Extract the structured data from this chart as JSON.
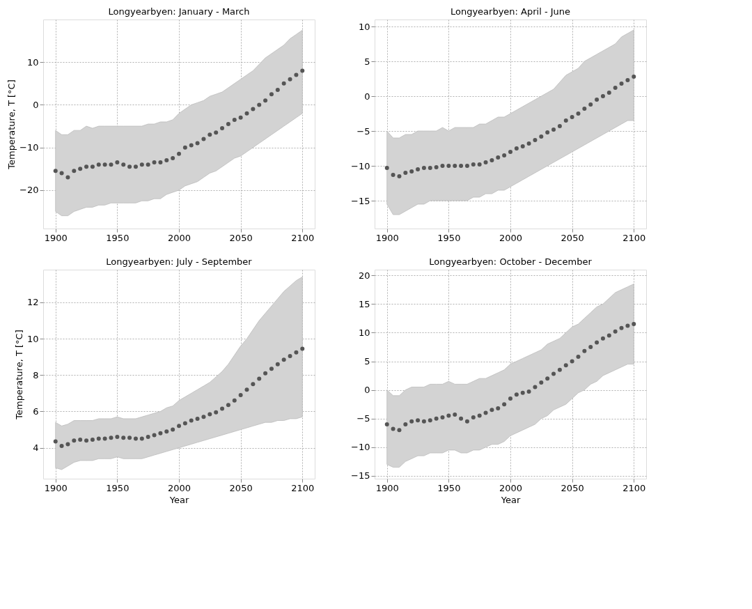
{
  "chart_data": [
    {
      "type": "scatter",
      "title": "Longyearbyen: January - March",
      "ylabel": "Temperature, T [°C]",
      "xlim": [
        1890,
        2110
      ],
      "xticks": [
        1900,
        1950,
        2000,
        2050,
        2100
      ],
      "ylim": [
        -29,
        20
      ],
      "yticks": [
        -20,
        -10,
        0,
        10
      ],
      "grid": true,
      "marker": "circle",
      "x": [
        1900,
        1905,
        1910,
        1915,
        1920,
        1925,
        1930,
        1935,
        1940,
        1945,
        1950,
        1955,
        1960,
        1965,
        1970,
        1975,
        1980,
        1985,
        1990,
        1995,
        2000,
        2005,
        2010,
        2015,
        2020,
        2025,
        2030,
        2035,
        2040,
        2045,
        2050,
        2055,
        2060,
        2065,
        2070,
        2075,
        2080,
        2085,
        2090,
        2095,
        2100
      ],
      "series": [
        {
          "color": "#555555",
          "values": [
            -15.5,
            -16,
            -17,
            -15.5,
            -15,
            -14.5,
            -14.5,
            -14,
            -14,
            -14,
            -13.5,
            -14,
            -14.5,
            -14.5,
            -14,
            -14,
            -13.5,
            -13.5,
            -13,
            -12.5,
            -11.5,
            -10,
            -9.5,
            -9,
            -8,
            -7,
            -6.5,
            -5.5,
            -4.5,
            -3.5,
            -3,
            -2,
            -1,
            0,
            1,
            2.5,
            3.5,
            5,
            6,
            7,
            8
          ],
          "upper": [
            -6,
            -7,
            -7,
            -6,
            -6,
            -5,
            -5.5,
            -5,
            -5,
            -5,
            -5,
            -5,
            -5,
            -5,
            -5,
            -4.5,
            -4.5,
            -4,
            -4,
            -3.5,
            -2,
            -1,
            0,
            0.5,
            1,
            2,
            2.5,
            3,
            4,
            5,
            6,
            7,
            8,
            9.5,
            11,
            12,
            13,
            14,
            15.5,
            16.5,
            17.5
          ],
          "lower": [
            -25,
            -26,
            -26,
            -25,
            -24.5,
            -24,
            -24,
            -23.5,
            -23.5,
            -23,
            -23,
            -23,
            -23,
            -23,
            -22.5,
            -22.5,
            -22,
            -22,
            -21,
            -20.5,
            -20,
            -19,
            -18.5,
            -18,
            -17,
            -16,
            -15.5,
            -14.5,
            -13.5,
            -12.5,
            -12,
            -11,
            -10,
            -9,
            -8,
            -7,
            -6,
            -5,
            -4,
            -3,
            -2
          ]
        }
      ]
    },
    {
      "type": "scatter",
      "title": "Longyearbyen: April - June",
      "xlim": [
        1890,
        2110
      ],
      "xticks": [
        1900,
        1950,
        2000,
        2050,
        2100
      ],
      "ylim": [
        -19,
        11
      ],
      "yticks": [
        -15,
        -10,
        -5,
        0,
        5,
        10
      ],
      "grid": true,
      "marker": "circle",
      "x": [
        1900,
        1905,
        1910,
        1915,
        1920,
        1925,
        1930,
        1935,
        1940,
        1945,
        1950,
        1955,
        1960,
        1965,
        1970,
        1975,
        1980,
        1985,
        1990,
        1995,
        2000,
        2005,
        2010,
        2015,
        2020,
        2025,
        2030,
        2035,
        2040,
        2045,
        2050,
        2055,
        2060,
        2065,
        2070,
        2075,
        2080,
        2085,
        2090,
        2095,
        2100
      ],
      "series": [
        {
          "color": "#555555",
          "values": [
            -10.3,
            -11.3,
            -11.5,
            -11,
            -10.8,
            -10.5,
            -10.3,
            -10.3,
            -10.2,
            -10,
            -10,
            -10,
            -10,
            -10,
            -9.8,
            -9.8,
            -9.5,
            -9.2,
            -8.8,
            -8.5,
            -8,
            -7.5,
            -7.2,
            -6.8,
            -6.3,
            -5.8,
            -5.2,
            -4.8,
            -4.3,
            -3.5,
            -3,
            -2.5,
            -1.8,
            -1.2,
            -0.5,
            0,
            0.5,
            1.2,
            1.8,
            2.3,
            2.8
          ],
          "upper": [
            -5,
            -6,
            -6,
            -5.5,
            -5.5,
            -5,
            -5,
            -5,
            -5,
            -4.5,
            -5,
            -4.5,
            -4.5,
            -4.5,
            -4.5,
            -4,
            -4,
            -3.5,
            -3,
            -3,
            -2.5,
            -2,
            -1.5,
            -1,
            -0.5,
            0,
            0.5,
            1,
            2,
            3,
            3.5,
            4,
            5,
            5.5,
            6,
            6.5,
            7,
            7.5,
            8.5,
            9,
            9.5
          ],
          "lower": [
            -15.5,
            -17,
            -17,
            -16.5,
            -16,
            -15.5,
            -15.5,
            -15,
            -15,
            -15,
            -15,
            -15,
            -15,
            -15,
            -14.5,
            -14.5,
            -14,
            -14,
            -13.5,
            -13.5,
            -13,
            -12.5,
            -12,
            -11.5,
            -11,
            -10.5,
            -10,
            -9.5,
            -9,
            -8.5,
            -8,
            -7.5,
            -7,
            -6.5,
            -6,
            -5.5,
            -5,
            -4.5,
            -4,
            -3.5,
            -3.5
          ]
        }
      ]
    },
    {
      "type": "scatter",
      "title": "Longyearbyen: July - September",
      "xlabel": "Year",
      "ylabel": "Temperature, T [°C]",
      "xlim": [
        1890,
        2110
      ],
      "xticks": [
        1900,
        1950,
        2000,
        2050,
        2100
      ],
      "ylim": [
        2.3,
        13.8
      ],
      "yticks": [
        4,
        6,
        8,
        10,
        12
      ],
      "grid": true,
      "marker": "circle",
      "x": [
        1900,
        1905,
        1910,
        1915,
        1920,
        1925,
        1930,
        1935,
        1940,
        1945,
        1950,
        1955,
        1960,
        1965,
        1970,
        1975,
        1980,
        1985,
        1990,
        1995,
        2000,
        2005,
        2010,
        2015,
        2020,
        2025,
        2030,
        2035,
        2040,
        2045,
        2050,
        2055,
        2060,
        2065,
        2070,
        2075,
        2080,
        2085,
        2090,
        2095,
        2100
      ],
      "series": [
        {
          "color": "#555555",
          "values": [
            4.35,
            4.1,
            4.2,
            4.4,
            4.45,
            4.4,
            4.45,
            4.5,
            4.5,
            4.55,
            4.6,
            4.55,
            4.55,
            4.5,
            4.5,
            4.6,
            4.7,
            4.8,
            4.9,
            5,
            5.2,
            5.35,
            5.5,
            5.6,
            5.7,
            5.85,
            5.95,
            6.15,
            6.35,
            6.6,
            6.9,
            7.2,
            7.5,
            7.8,
            8.1,
            8.35,
            8.6,
            8.85,
            9.05,
            9.25,
            9.45
          ],
          "upper": [
            5.4,
            5.2,
            5.3,
            5.5,
            5.5,
            5.5,
            5.5,
            5.6,
            5.6,
            5.6,
            5.7,
            5.6,
            5.6,
            5.6,
            5.7,
            5.8,
            5.9,
            6,
            6.2,
            6.3,
            6.6,
            6.8,
            7,
            7.2,
            7.4,
            7.6,
            7.9,
            8.2,
            8.6,
            9.1,
            9.6,
            10,
            10.5,
            11,
            11.4,
            11.8,
            12.2,
            12.6,
            12.9,
            13.2,
            13.4
          ],
          "lower": [
            2.9,
            2.8,
            3,
            3.2,
            3.3,
            3.3,
            3.3,
            3.4,
            3.4,
            3.4,
            3.5,
            3.4,
            3.4,
            3.4,
            3.4,
            3.5,
            3.6,
            3.7,
            3.8,
            3.9,
            4,
            4.1,
            4.2,
            4.3,
            4.4,
            4.5,
            4.6,
            4.7,
            4.8,
            4.9,
            5,
            5.1,
            5.2,
            5.3,
            5.4,
            5.4,
            5.5,
            5.5,
            5.6,
            5.6,
            5.7
          ]
        }
      ]
    },
    {
      "type": "scatter",
      "title": "Longyearbyen: October - December",
      "xlabel": "Year",
      "xlim": [
        1890,
        2110
      ],
      "xticks": [
        1900,
        1950,
        2000,
        2050,
        2100
      ],
      "ylim": [
        -15.5,
        21
      ],
      "yticks": [
        -15,
        -10,
        -5,
        0,
        5,
        10,
        15,
        20
      ],
      "grid": true,
      "marker": "circle",
      "x": [
        1900,
        1905,
        1910,
        1915,
        1920,
        1925,
        1930,
        1935,
        1940,
        1945,
        1950,
        1955,
        1960,
        1965,
        1970,
        1975,
        1980,
        1985,
        1990,
        1995,
        2000,
        2005,
        2010,
        2015,
        2020,
        2025,
        2030,
        2035,
        2040,
        2045,
        2050,
        2055,
        2060,
        2065,
        2070,
        2075,
        2080,
        2085,
        2090,
        2095,
        2100
      ],
      "series": [
        {
          "color": "#555555",
          "values": [
            -6,
            -6.8,
            -7,
            -6,
            -5.5,
            -5.3,
            -5.5,
            -5.3,
            -5,
            -4.8,
            -4.5,
            -4.3,
            -5,
            -5.5,
            -4.8,
            -4.5,
            -4,
            -3.5,
            -3.2,
            -2.5,
            -1.5,
            -0.8,
            -0.5,
            -0.3,
            0.5,
            1.3,
            2,
            2.8,
            3.5,
            4.3,
            5,
            5.8,
            6.8,
            7.5,
            8.3,
            9,
            9.5,
            10.2,
            10.8,
            11.2,
            11.5
          ],
          "upper": [
            0,
            -1,
            -1,
            0,
            0.5,
            0.5,
            0.5,
            1,
            1,
            1,
            1.5,
            1,
            1,
            1,
            1.5,
            2,
            2,
            2.5,
            3,
            3.5,
            4.5,
            5,
            5.5,
            6,
            6.5,
            7,
            8,
            8.5,
            9,
            10,
            11,
            11.5,
            12.5,
            13.5,
            14.5,
            15,
            16,
            17,
            17.5,
            18,
            18.5
          ],
          "lower": [
            -13,
            -13.5,
            -13.5,
            -12.5,
            -12,
            -11.5,
            -11.5,
            -11,
            -11,
            -11,
            -10.5,
            -10.5,
            -11,
            -11,
            -10.5,
            -10.5,
            -10,
            -9.5,
            -9.5,
            -9,
            -8,
            -7.5,
            -7,
            -6.5,
            -6,
            -5,
            -4.5,
            -3.5,
            -3,
            -2.5,
            -1.5,
            -0.5,
            0,
            1,
            1.5,
            2.5,
            3,
            3.5,
            4,
            4.5,
            4.5
          ]
        }
      ]
    }
  ]
}
